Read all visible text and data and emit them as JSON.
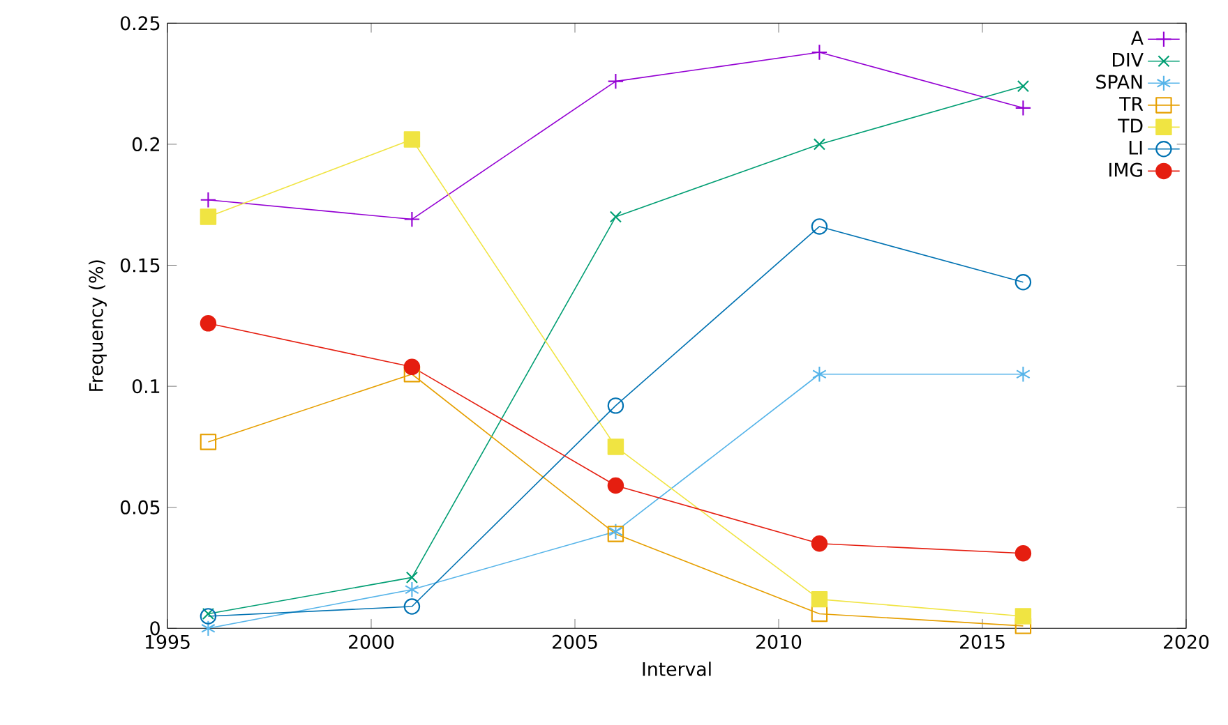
{
  "chart_data": {
    "type": "line",
    "xlabel": "Interval",
    "ylabel": "Frequency (%)",
    "x": [
      1996,
      2001,
      2006,
      2011,
      2016
    ],
    "series": [
      {
        "name": "A",
        "color": "#9400d3",
        "marker": "plus",
        "values": [
          0.177,
          0.169,
          0.226,
          0.238,
          0.215
        ]
      },
      {
        "name": "DIV",
        "color": "#009e73",
        "marker": "x",
        "values": [
          0.006,
          0.021,
          0.17,
          0.2,
          0.224
        ]
      },
      {
        "name": "SPAN",
        "color": "#56b4e9",
        "marker": "cross",
        "values": [
          0.0,
          0.016,
          0.04,
          0.105,
          0.105
        ]
      },
      {
        "name": "TR",
        "color": "#e69f00",
        "marker": "square",
        "values": [
          0.077,
          0.105,
          0.039,
          0.006,
          0.001
        ]
      },
      {
        "name": "TD",
        "color": "#f0e442",
        "marker": "square_filled",
        "values": [
          0.17,
          0.202,
          0.075,
          0.012,
          0.005
        ]
      },
      {
        "name": "LI",
        "color": "#0072b2",
        "marker": "circle",
        "values": [
          0.005,
          0.009,
          0.092,
          0.166,
          0.143
        ]
      },
      {
        "name": "IMG",
        "color": "#e51e10",
        "marker": "circle_filled",
        "values": [
          0.126,
          0.108,
          0.059,
          0.035,
          0.031
        ]
      }
    ],
    "xlim": [
      1995,
      2020
    ],
    "xticks": [
      1995,
      2000,
      2005,
      2010,
      2015,
      2020
    ],
    "ylim": [
      0,
      0.25
    ],
    "yticks": [
      0,
      0.05,
      0.1,
      0.15,
      0.2,
      0.25
    ],
    "grid": false,
    "legend": "top right",
    "line_style": "solid"
  }
}
